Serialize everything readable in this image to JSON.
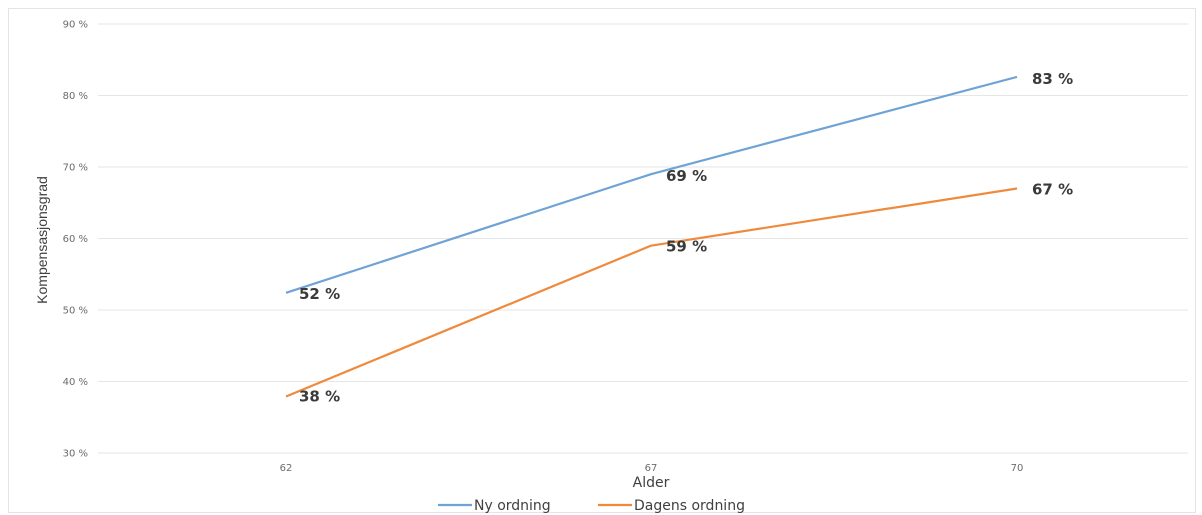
{
  "chart_data": {
    "type": "line",
    "title": "",
    "xlabel": "Alder",
    "ylabel": "Kompensasjonsgrad",
    "categories": [
      "62",
      "67",
      "70"
    ],
    "ylim": [
      30,
      90
    ],
    "yticks": [
      30,
      40,
      50,
      60,
      70,
      80,
      90
    ],
    "ytick_labels": [
      "30 %",
      "40 %",
      "50 %",
      "60 %",
      "70 %",
      "80 %",
      "90 %"
    ],
    "grid": "horizontal",
    "legend_position": "bottom",
    "series": [
      {
        "name": "Ny ordning",
        "color": "#6fa3d6",
        "values": [
          52.4,
          69.0,
          82.6
        ],
        "labels": [
          "52 %",
          "69 %",
          "83 %"
        ]
      },
      {
        "name": "Dagens ordning",
        "color": "#ef8a3c",
        "values": [
          37.9,
          59.0,
          67.0
        ],
        "labels": [
          "38 %",
          "59 %",
          "67 %"
        ]
      }
    ]
  }
}
